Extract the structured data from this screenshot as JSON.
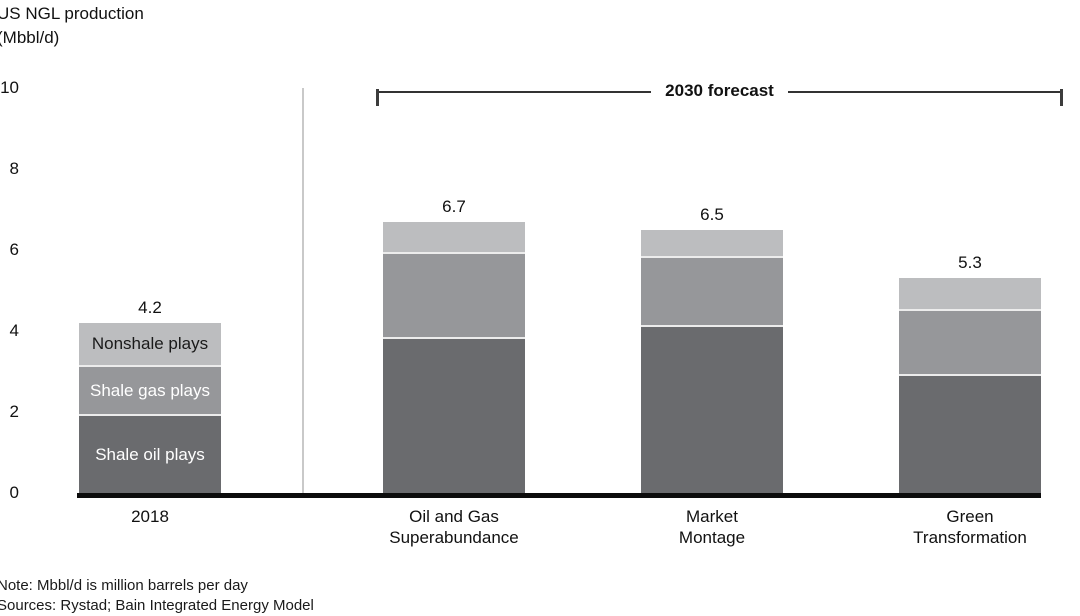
{
  "title": {
    "line1": "US NGL production",
    "line2": "(Mbbl/d)"
  },
  "y_axis": {
    "tick_labels": [
      "10",
      "8",
      "6",
      "4",
      "2",
      "0"
    ]
  },
  "forecast_bracket": {
    "label": "2030 forecast"
  },
  "chart_data": {
    "type": "bar",
    "stacked": true,
    "title": "US NGL production (Mbbl/d)",
    "ylabel": "Mbbl/d",
    "ylim": [
      0,
      10
    ],
    "yticks": [
      0,
      2,
      4,
      6,
      8,
      10
    ],
    "grid": false,
    "categories": [
      "2018",
      "Oil and Gas Superabundance",
      "Market Montage",
      "Green Transformation"
    ],
    "series": [
      {
        "name": "Shale oil plays",
        "color": "#6a6b6e",
        "values": [
          1.9,
          3.8,
          4.1,
          2.9
        ]
      },
      {
        "name": "Shale gas plays",
        "color": "#96979a",
        "values": [
          1.2,
          2.1,
          1.7,
          1.6
        ]
      },
      {
        "name": "Nonshale plays",
        "color": "#bcbdbf",
        "values": [
          1.1,
          0.8,
          0.7,
          0.8
        ]
      }
    ],
    "totals": [
      4.2,
      6.7,
      6.5,
      5.3
    ],
    "annotations": [
      "2030 forecast brackets the three rightmost bars"
    ],
    "legend_position": "labels inside first bar segments"
  },
  "bars": [
    {
      "total_label": "4.2",
      "x_label_line1": "2018",
      "x_label_line2": ""
    },
    {
      "total_label": "6.7",
      "x_label_line1": "Oil and Gas",
      "x_label_line2": "Superabundance"
    },
    {
      "total_label": "6.5",
      "x_label_line1": "Market",
      "x_label_line2": "Montage"
    },
    {
      "total_label": "5.3",
      "x_label_line1": "Green",
      "x_label_line2": "Transformation"
    }
  ],
  "footnotes": {
    "note": "Note: Mbbl/d is million barrels per day",
    "sources": "Sources: Rystad; Bain Integrated Energy Model"
  },
  "colors": {
    "shale_oil": "#6a6b6e",
    "shale_gas": "#96979a",
    "nonshale": "#bcbdbf",
    "divider": "#c9c9c9",
    "axis_line": "#0c0c0c"
  }
}
